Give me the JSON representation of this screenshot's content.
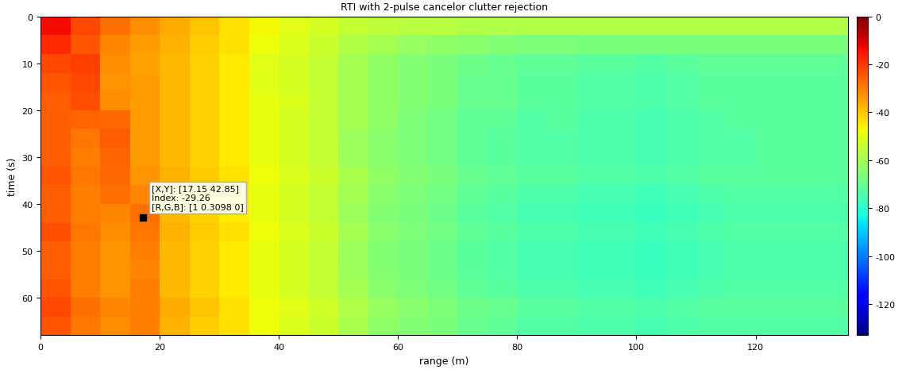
{
  "chart_data": {
    "type": "heatmap",
    "title": "RTI with 2-pulse cancelor clutter rejection",
    "x_label": "range (m)",
    "y_label": "time (s)",
    "xlim": [
      0,
      135.5
    ],
    "xticks": [
      0,
      20,
      40,
      60,
      80,
      100,
      120
    ],
    "ylim": [
      68,
      0
    ],
    "yticks": [
      0,
      10,
      20,
      30,
      40,
      50,
      60
    ],
    "x_edges": [
      0,
      5,
      10,
      15,
      20,
      25,
      30,
      35,
      40,
      45,
      50,
      55,
      60,
      65,
      70,
      75,
      80,
      85,
      90,
      95,
      100,
      105,
      110,
      115,
      120,
      125,
      130,
      135.5
    ],
    "y_edges": [
      0,
      4,
      8,
      12,
      16,
      20,
      24,
      28,
      32,
      36,
      40,
      44,
      48,
      52,
      56,
      60,
      64,
      68
    ],
    "cells": [
      [
        -14,
        -22,
        -28,
        -32,
        -36,
        -40,
        -44,
        -47,
        -50,
        -52,
        -55,
        -56,
        -57,
        -57,
        -58,
        -58,
        -58,
        -58,
        -58,
        -58,
        -58,
        -58,
        -58,
        -58,
        -58,
        -58,
        -58
      ],
      [
        -18,
        -24,
        -31,
        -34,
        -37,
        -41,
        -44,
        -48,
        -51,
        -54,
        -58,
        -60,
        -62,
        -63,
        -64,
        -65,
        -66,
        -66,
        -67,
        -67,
        -67,
        -67,
        -67,
        -67,
        -67,
        -67,
        -67
      ],
      [
        -22,
        -21,
        -32,
        -35,
        -38,
        -42,
        -45,
        -50,
        -52,
        -55,
        -60,
        -63,
        -65,
        -67,
        -69,
        -70,
        -71,
        -71,
        -72,
        -72,
        -73,
        -72,
        -71,
        -71,
        -71,
        -71,
        -71
      ],
      [
        -24,
        -22,
        -33,
        -34,
        -38,
        -42,
        -45,
        -50,
        -52,
        -55,
        -60,
        -63,
        -65,
        -67,
        -70,
        -70,
        -72,
        -72,
        -73,
        -73,
        -74,
        -73,
        -72,
        -72,
        -72,
        -72,
        -72
      ],
      [
        -25,
        -23,
        -32,
        -34,
        -38,
        -42,
        -45,
        -49,
        -51,
        -55,
        -60,
        -63,
        -65,
        -67,
        -70,
        -70,
        -72,
        -72,
        -73,
        -73,
        -74,
        -73,
        -72,
        -72,
        -72,
        -72,
        -72
      ],
      [
        -25,
        -26,
        -27,
        -34,
        -38,
        -42,
        -45,
        -49,
        -52,
        -55,
        -60,
        -63,
        -66,
        -68,
        -71,
        -71,
        -73,
        -72,
        -74,
        -74,
        -75,
        -74,
        -73,
        -72,
        -72,
        -72,
        -72
      ],
      [
        -25,
        -29,
        -25,
        -34,
        -38,
        -42,
        -45,
        -49,
        -52,
        -55,
        -61,
        -64,
        -66,
        -68,
        -71,
        -72,
        -73,
        -73,
        -74,
        -74,
        -75,
        -74,
        -73,
        -73,
        -72,
        -72,
        -72
      ],
      [
        -25,
        -30,
        -26,
        -34,
        -38,
        -42,
        -45,
        -49,
        -52,
        -55,
        -61,
        -64,
        -66,
        -68,
        -71,
        -72,
        -73,
        -73,
        -74,
        -74,
        -75,
        -74,
        -73,
        -73,
        -72,
        -72,
        -72
      ],
      [
        -24,
        -29,
        -27,
        -33,
        -37,
        -41,
        -44,
        -48,
        -51,
        -54,
        -59,
        -63,
        -65,
        -67,
        -70,
        -71,
        -72,
        -72,
        -73,
        -73,
        -74,
        -73,
        -72,
        -72,
        -72,
        -72,
        -72
      ],
      [
        -25,
        -30,
        -28,
        -31,
        -38,
        -42,
        -45,
        -49,
        -52,
        -55,
        -60,
        -64,
        -66,
        -68,
        -71,
        -72,
        -74,
        -74,
        -75,
        -75,
        -76,
        -75,
        -74,
        -73,
        -73,
        -73,
        -73
      ],
      [
        -25,
        -30,
        -31,
        -28,
        -38,
        -42,
        -45,
        -49,
        -52,
        -55,
        -61,
        -65,
        -67,
        -69,
        -72,
        -73,
        -75,
        -75,
        -76,
        -76,
        -77,
        -76,
        -75,
        -74,
        -74,
        -74,
        -74
      ],
      [
        -23,
        -29,
        -32,
        -29,
        -37,
        -41,
        -44,
        -48,
        -51,
        -54,
        -60,
        -64,
        -66,
        -68,
        -71,
        -72,
        -74,
        -74,
        -75,
        -75,
        -76,
        -75,
        -74,
        -73,
        -73,
        -73,
        -73
      ],
      [
        -25,
        -30,
        -33,
        -30,
        -38,
        -42,
        -45,
        -49,
        -52,
        -55,
        -61,
        -65,
        -67,
        -69,
        -72,
        -73,
        -75,
        -75,
        -76,
        -76,
        -77,
        -76,
        -75,
        -74,
        -74,
        -74,
        -74
      ],
      [
        -25,
        -30,
        -33,
        -31,
        -38,
        -42,
        -45,
        -49,
        -52,
        -55,
        -61,
        -65,
        -67,
        -69,
        -72,
        -73,
        -75,
        -75,
        -76,
        -76,
        -77,
        -76,
        -75,
        -74,
        -74,
        -74,
        -74
      ],
      [
        -24,
        -30,
        -33,
        -30,
        -38,
        -42,
        -45,
        -49,
        -52,
        -55,
        -60,
        -64,
        -66,
        -68,
        -71,
        -72,
        -74,
        -74,
        -75,
        -75,
        -76,
        -75,
        -74,
        -73,
        -73,
        -73,
        -73
      ],
      [
        -22,
        -28,
        -31,
        -30,
        -36,
        -40,
        -44,
        -48,
        -50,
        -53,
        -58,
        -62,
        -64,
        -66,
        -69,
        -70,
        -72,
        -72,
        -73,
        -73,
        -74,
        -73,
        -72,
        -72,
        -72,
        -72,
        -72
      ],
      [
        -24,
        -29,
        -32,
        -30,
        -37,
        -41,
        -44,
        -48,
        -51,
        -54,
        -59,
        -63,
        -65,
        -67,
        -70,
        -71,
        -73,
        -73,
        -74,
        -74,
        -75,
        -74,
        -73,
        -73,
        -73,
        -73,
        -73
      ]
    ],
    "clim": [
      -133,
      0
    ],
    "cticks": [
      0,
      -20,
      -40,
      -60,
      -80,
      -100,
      -120
    ],
    "annotations": [
      {
        "x": 17.15,
        "y": 42.85,
        "lines": [
          "[X,Y]: [17.15 42.85]",
          "Index: -29.26",
          "[R,G,B]: [1 0.3098 0]"
        ]
      }
    ]
  }
}
